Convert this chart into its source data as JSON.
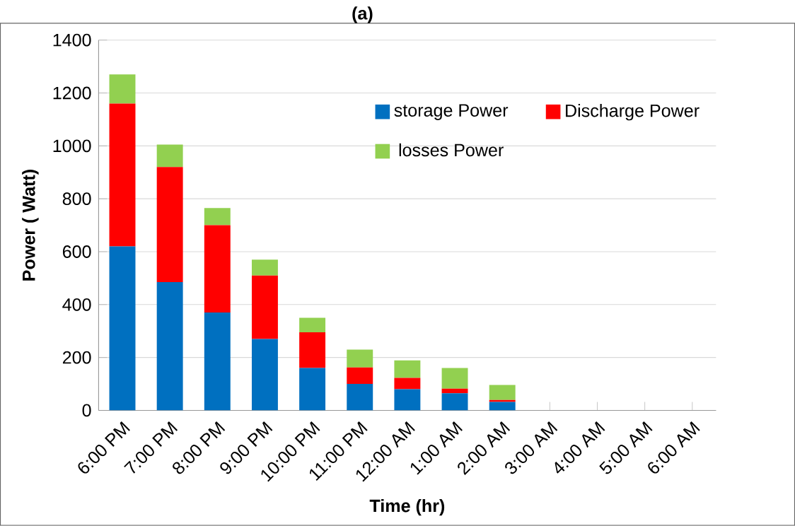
{
  "chart_data": {
    "type": "bar",
    "stacked": true,
    "title": "(a)",
    "xlabel": "Time (hr)",
    "ylabel": "Power ( Watt)",
    "categories": [
      "6:00 PM",
      "7:00 PM",
      "8:00 PM",
      "9:00 PM",
      "10:00 PM",
      "11:00 PM",
      "12:00 AM",
      "1:00 AM",
      "2:00 AM",
      "3:00 AM",
      "4:00 AM",
      "5:00 AM",
      "6:00 AM"
    ],
    "series": [
      {
        "name": "storage Power",
        "color": "#0070c0",
        "values": [
          620,
          485,
          370,
          270,
          160,
          100,
          80,
          65,
          32,
          0,
          0,
          0,
          0
        ]
      },
      {
        "name": "Discharge Power",
        "color": "#ff0000",
        "values": [
          540,
          435,
          330,
          240,
          135,
          62,
          43,
          17,
          7,
          0,
          0,
          0,
          0
        ]
      },
      {
        "name": "losses Power",
        "color": "#92d050",
        "values": [
          110,
          85,
          65,
          60,
          55,
          68,
          66,
          78,
          57,
          0,
          0,
          0,
          0
        ]
      }
    ],
    "ylim": [
      0,
      1400
    ],
    "yticks": [
      0,
      200,
      400,
      600,
      800,
      1000,
      1200,
      1400
    ],
    "grid": "y",
    "legend": "top right"
  }
}
